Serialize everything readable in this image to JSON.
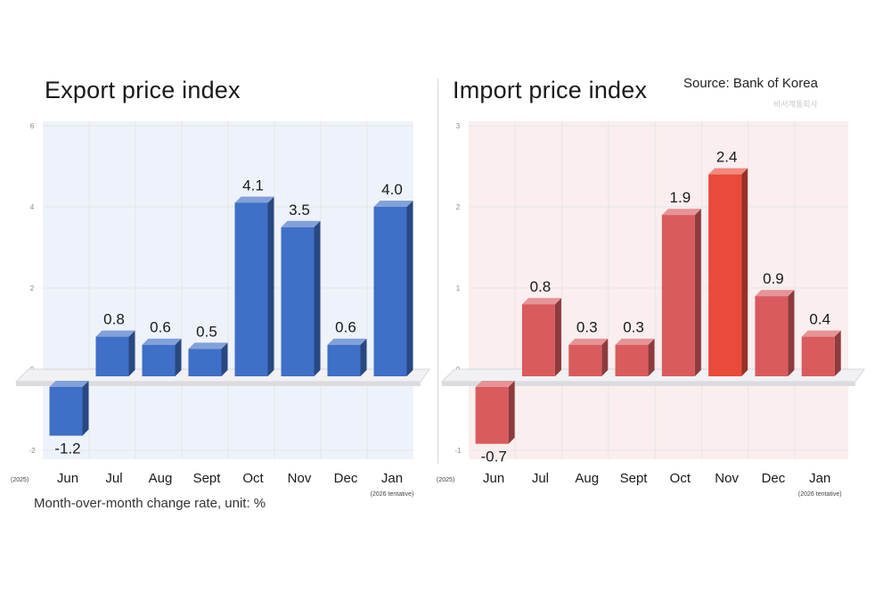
{
  "title_export": "Export price index",
  "title_import": "Import price index",
  "source": "Source: Bank of Korea",
  "watermark": "비서계통회사",
  "footnote": "Month-over-month change rate, unit: %",
  "colors": {
    "export": "#3f6fc6",
    "import": "#d95b5e",
    "import_highlight": "#ea4a3a"
  },
  "chart_data": [
    {
      "type": "bar",
      "title": "Export price index",
      "categories": [
        "Jun",
        "Jul",
        "Aug",
        "Sept",
        "Oct",
        "Nov",
        "Dec",
        "Jan"
      ],
      "values": [
        -1.2,
        0.8,
        0.6,
        0.5,
        4.1,
        3.5,
        0.6,
        4.0
      ],
      "value_labels": [
        "-1.2",
        "0.8",
        "0.6",
        "0.5",
        "4.1",
        "3.5",
        "0.6",
        "4.0"
      ],
      "yticks": [
        "6",
        "4",
        "2",
        "0",
        "-2"
      ],
      "ylim": [
        -2,
        6
      ],
      "first_category_note": "(2025)",
      "last_category_note": "(2026 tentative)",
      "color": "#3f6fc6",
      "grid": true
    },
    {
      "type": "bar",
      "title": "Import price index",
      "categories": [
        "Jun",
        "Jul",
        "Aug",
        "Sept",
        "Oct",
        "Nov",
        "Dec",
        "Jan"
      ],
      "values": [
        -0.7,
        0.8,
        0.3,
        0.3,
        1.9,
        2.4,
        0.9,
        0.4
      ],
      "value_labels": [
        "-0.7",
        "0.8",
        "0.3",
        "0.3",
        "1.9",
        "2.4",
        "0.9",
        "0.4"
      ],
      "yticks": [
        "3",
        "2",
        "1",
        "0",
        "-1"
      ],
      "ylim": [
        -1,
        3
      ],
      "first_category_note": "(2025)",
      "last_category_note": "(2026 tentative)",
      "color": "#d95b5e",
      "highlight_category": "Nov",
      "highlight_color": "#ea4a3a",
      "grid": true
    }
  ]
}
